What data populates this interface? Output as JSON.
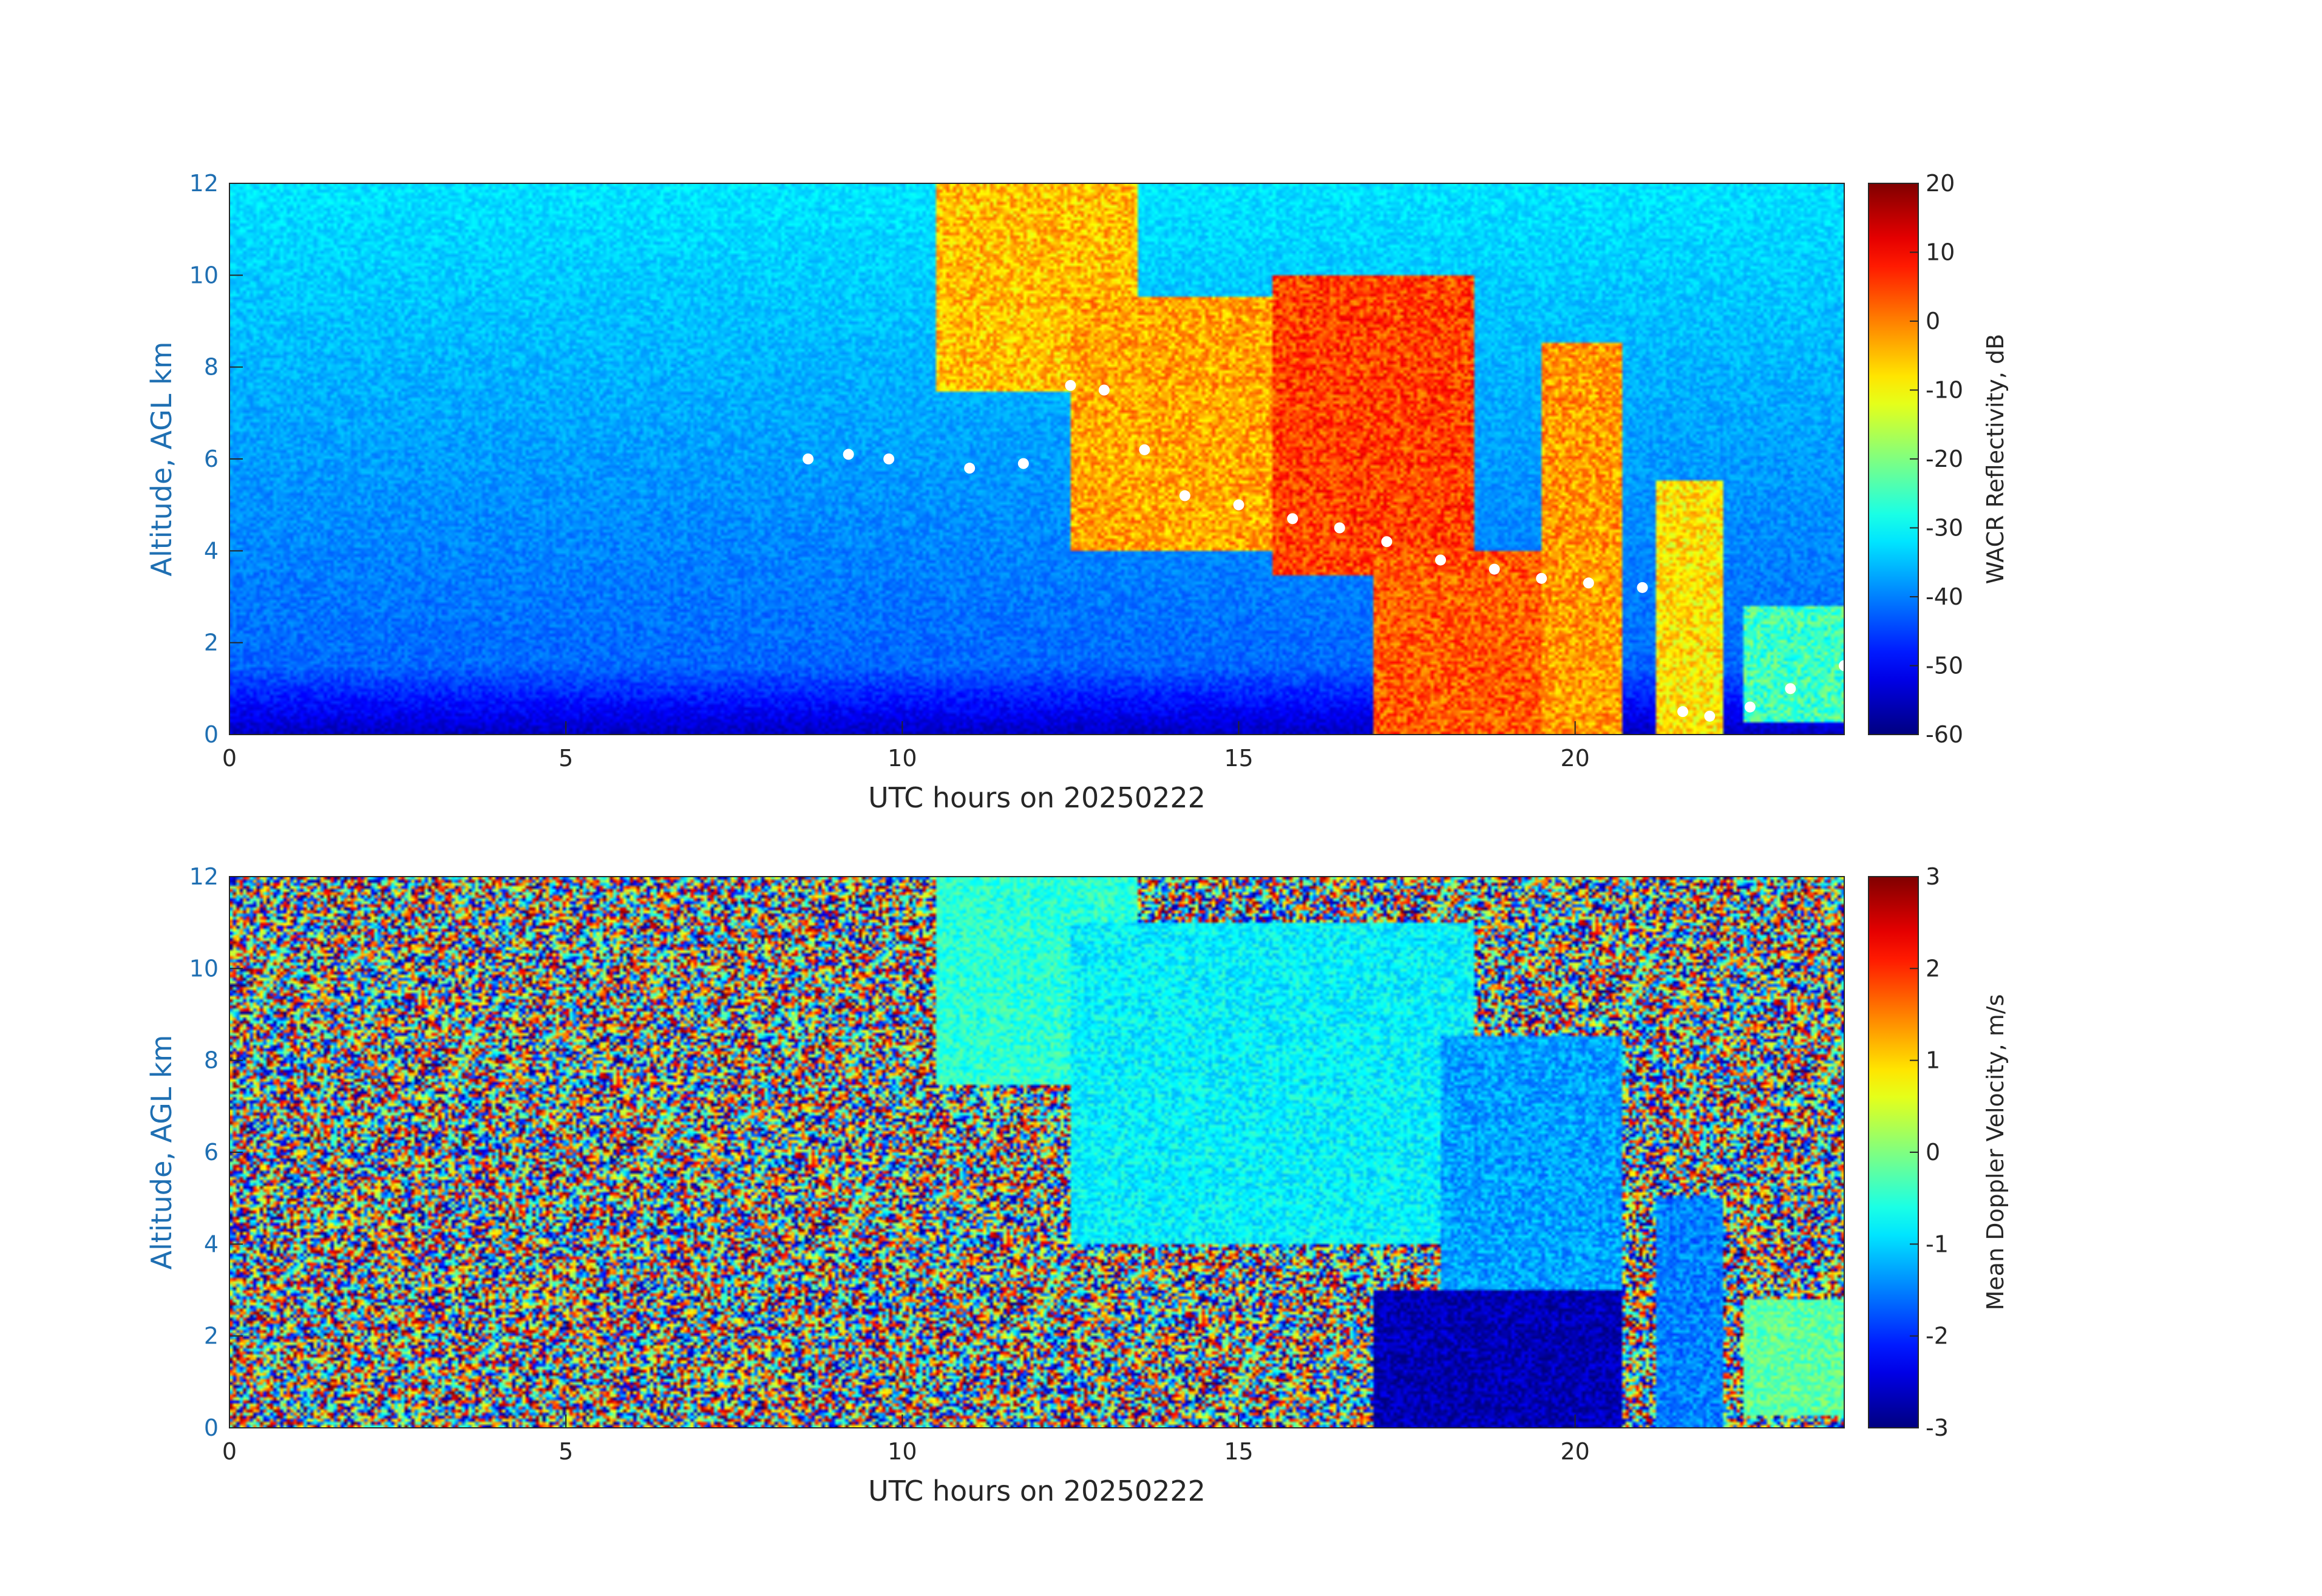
{
  "chart_data": [
    {
      "type": "heatmap",
      "panel": "top",
      "xlabel": "UTC hours on 20250222",
      "ylabel": "Altitude, AGL km",
      "xlim": [
        0,
        24
      ],
      "ylim": [
        0,
        12
      ],
      "xticks": [
        0,
        5,
        10,
        15,
        20
      ],
      "yticks": [
        0,
        2,
        4,
        6,
        8,
        10,
        12
      ],
      "x_tick_labels": [
        "0",
        "5",
        "10",
        "15",
        "20"
      ],
      "y_tick_labels": [
        "0",
        "2",
        "4",
        "6",
        "8",
        "10",
        "12"
      ],
      "colorbar": {
        "label": "WACR Reflectivity, dB",
        "range": [
          -60,
          20
        ],
        "ticks": [
          20,
          10,
          0,
          -10,
          -20,
          -30,
          -40,
          -50,
          -60
        ],
        "tick_labels": [
          "20",
          "10",
          "0",
          "-10",
          "-20",
          "-30",
          "-40",
          "-50",
          "-60"
        ],
        "colormap": "jet"
      },
      "background_value_dB": {
        "near_surface": -55,
        "mid_levels": -42,
        "upper_levels": -32
      },
      "cloud_features": [
        {
          "x_start": 10.5,
          "x_end": 13.5,
          "alt_bottom": 7.5,
          "alt_top": 12.0,
          "value_dB": -5
        },
        {
          "x_start": 12.5,
          "x_end": 15.5,
          "alt_bottom": 4.0,
          "alt_top": 9.5,
          "value_dB": -3
        },
        {
          "x_start": 15.5,
          "x_end": 18.5,
          "alt_bottom": 3.5,
          "alt_top": 10.0,
          "value_dB": 5
        },
        {
          "x_start": 17.0,
          "x_end": 20.7,
          "alt_bottom": 0.0,
          "alt_top": 4.0,
          "value_dB": 3
        },
        {
          "x_start": 19.5,
          "x_end": 20.7,
          "alt_bottom": 0.0,
          "alt_top": 8.5,
          "value_dB": -2
        },
        {
          "x_start": 21.2,
          "x_end": 22.2,
          "alt_bottom": 0.0,
          "alt_top": 5.5,
          "value_dB": -8
        },
        {
          "x_start": 22.5,
          "x_end": 24.0,
          "alt_bottom": 0.3,
          "alt_top": 2.8,
          "value_dB": -25
        }
      ],
      "cloud_base_points": {
        "x": [
          8.6,
          9.2,
          9.8,
          11.0,
          11.8,
          12.5,
          13.0,
          13.6,
          14.2,
          15.0,
          15.8,
          16.5,
          17.2,
          18.0,
          18.8,
          19.5,
          20.2,
          21.0,
          21.6,
          22.0,
          22.6,
          23.2,
          24.0
        ],
        "y": [
          6.0,
          6.1,
          6.0,
          5.8,
          5.9,
          7.6,
          7.5,
          6.2,
          5.2,
          5.0,
          4.7,
          4.5,
          4.2,
          3.8,
          3.6,
          3.4,
          3.3,
          3.2,
          0.5,
          0.4,
          0.6,
          1.0,
          1.5
        ]
      }
    },
    {
      "type": "heatmap",
      "panel": "bottom",
      "xlabel": "UTC hours on 20250222",
      "ylabel": "Altitude, AGL km",
      "xlim": [
        0,
        24
      ],
      "ylim": [
        0,
        12
      ],
      "xticks": [
        0,
        5,
        10,
        15,
        20
      ],
      "yticks": [
        0,
        2,
        4,
        6,
        8,
        10,
        12
      ],
      "x_tick_labels": [
        "0",
        "5",
        "10",
        "15",
        "20"
      ],
      "y_tick_labels": [
        "0",
        "2",
        "4",
        "6",
        "8",
        "10",
        "12"
      ],
      "colorbar": {
        "label": "Mean Doppler Velocity, m/s",
        "range": [
          -3,
          3
        ],
        "ticks": [
          3,
          2,
          1,
          0,
          -1,
          -2,
          -3
        ],
        "tick_labels": [
          "3",
          "2",
          "1",
          "0",
          "-1",
          "-2",
          "-3"
        ],
        "colormap": "jet"
      },
      "background": "random noise spanning full colormap",
      "cloud_features": [
        {
          "x_start": 10.5,
          "x_end": 13.5,
          "alt_bottom": 7.5,
          "alt_top": 12.0,
          "value_ms": -0.5
        },
        {
          "x_start": 12.5,
          "x_end": 18.5,
          "alt_bottom": 4.0,
          "alt_top": 11.0,
          "value_ms": -0.8
        },
        {
          "x_start": 17.0,
          "x_end": 20.7,
          "alt_bottom": 0.0,
          "alt_top": 3.0,
          "value_ms": -2.7
        },
        {
          "x_start": 18.0,
          "x_end": 20.7,
          "alt_bottom": 3.0,
          "alt_top": 8.5,
          "value_ms": -1.3
        },
        {
          "x_start": 21.2,
          "x_end": 22.2,
          "alt_bottom": 0.0,
          "alt_top": 5.0,
          "value_ms": -1.5
        },
        {
          "x_start": 22.5,
          "x_end": 24.0,
          "alt_bottom": 0.3,
          "alt_top": 2.8,
          "value_ms": -0.2
        }
      ]
    }
  ]
}
